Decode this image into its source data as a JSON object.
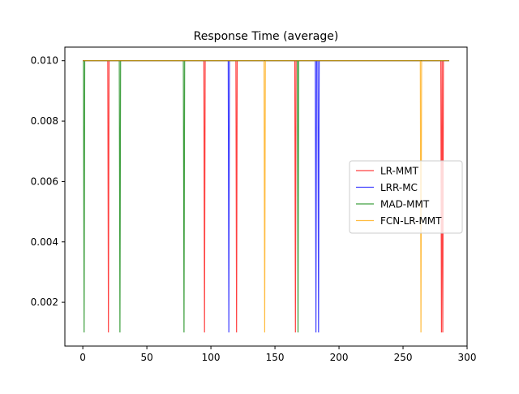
{
  "chart_data": {
    "type": "line",
    "title": "Response Time (average)",
    "xlabel": "",
    "ylabel": "",
    "xlim": [
      -14,
      300
    ],
    "ylim": [
      0.00055,
      0.01045
    ],
    "x_ticks": [
      0,
      50,
      100,
      150,
      200,
      250,
      300
    ],
    "y_ticks": [
      0.002,
      0.004,
      0.006,
      0.008,
      0.01
    ],
    "x_tick_labels": [
      "0",
      "50",
      "100",
      "150",
      "200",
      "250",
      "300"
    ],
    "y_tick_labels": [
      "0.002",
      "0.004",
      "0.006",
      "0.008",
      "0.010"
    ],
    "legend_position": "center-right",
    "grid": false,
    "high_value": 0.01,
    "low_value": 0.001,
    "x_max": 286,
    "series": [
      {
        "name": "LR-MMT",
        "color": "#ff0000",
        "dips": [
          20,
          95,
          120,
          166,
          280,
          281
        ]
      },
      {
        "name": "LRR-MC",
        "color": "#0000ff",
        "dips": [
          114,
          182,
          184
        ]
      },
      {
        "name": "MAD-MMT",
        "color": "#008000",
        "dips": [
          1,
          29,
          79,
          168
        ]
      },
      {
        "name": "FCN-LR-MMT",
        "color": "#ffa500",
        "dips": [
          142,
          264
        ]
      }
    ]
  }
}
